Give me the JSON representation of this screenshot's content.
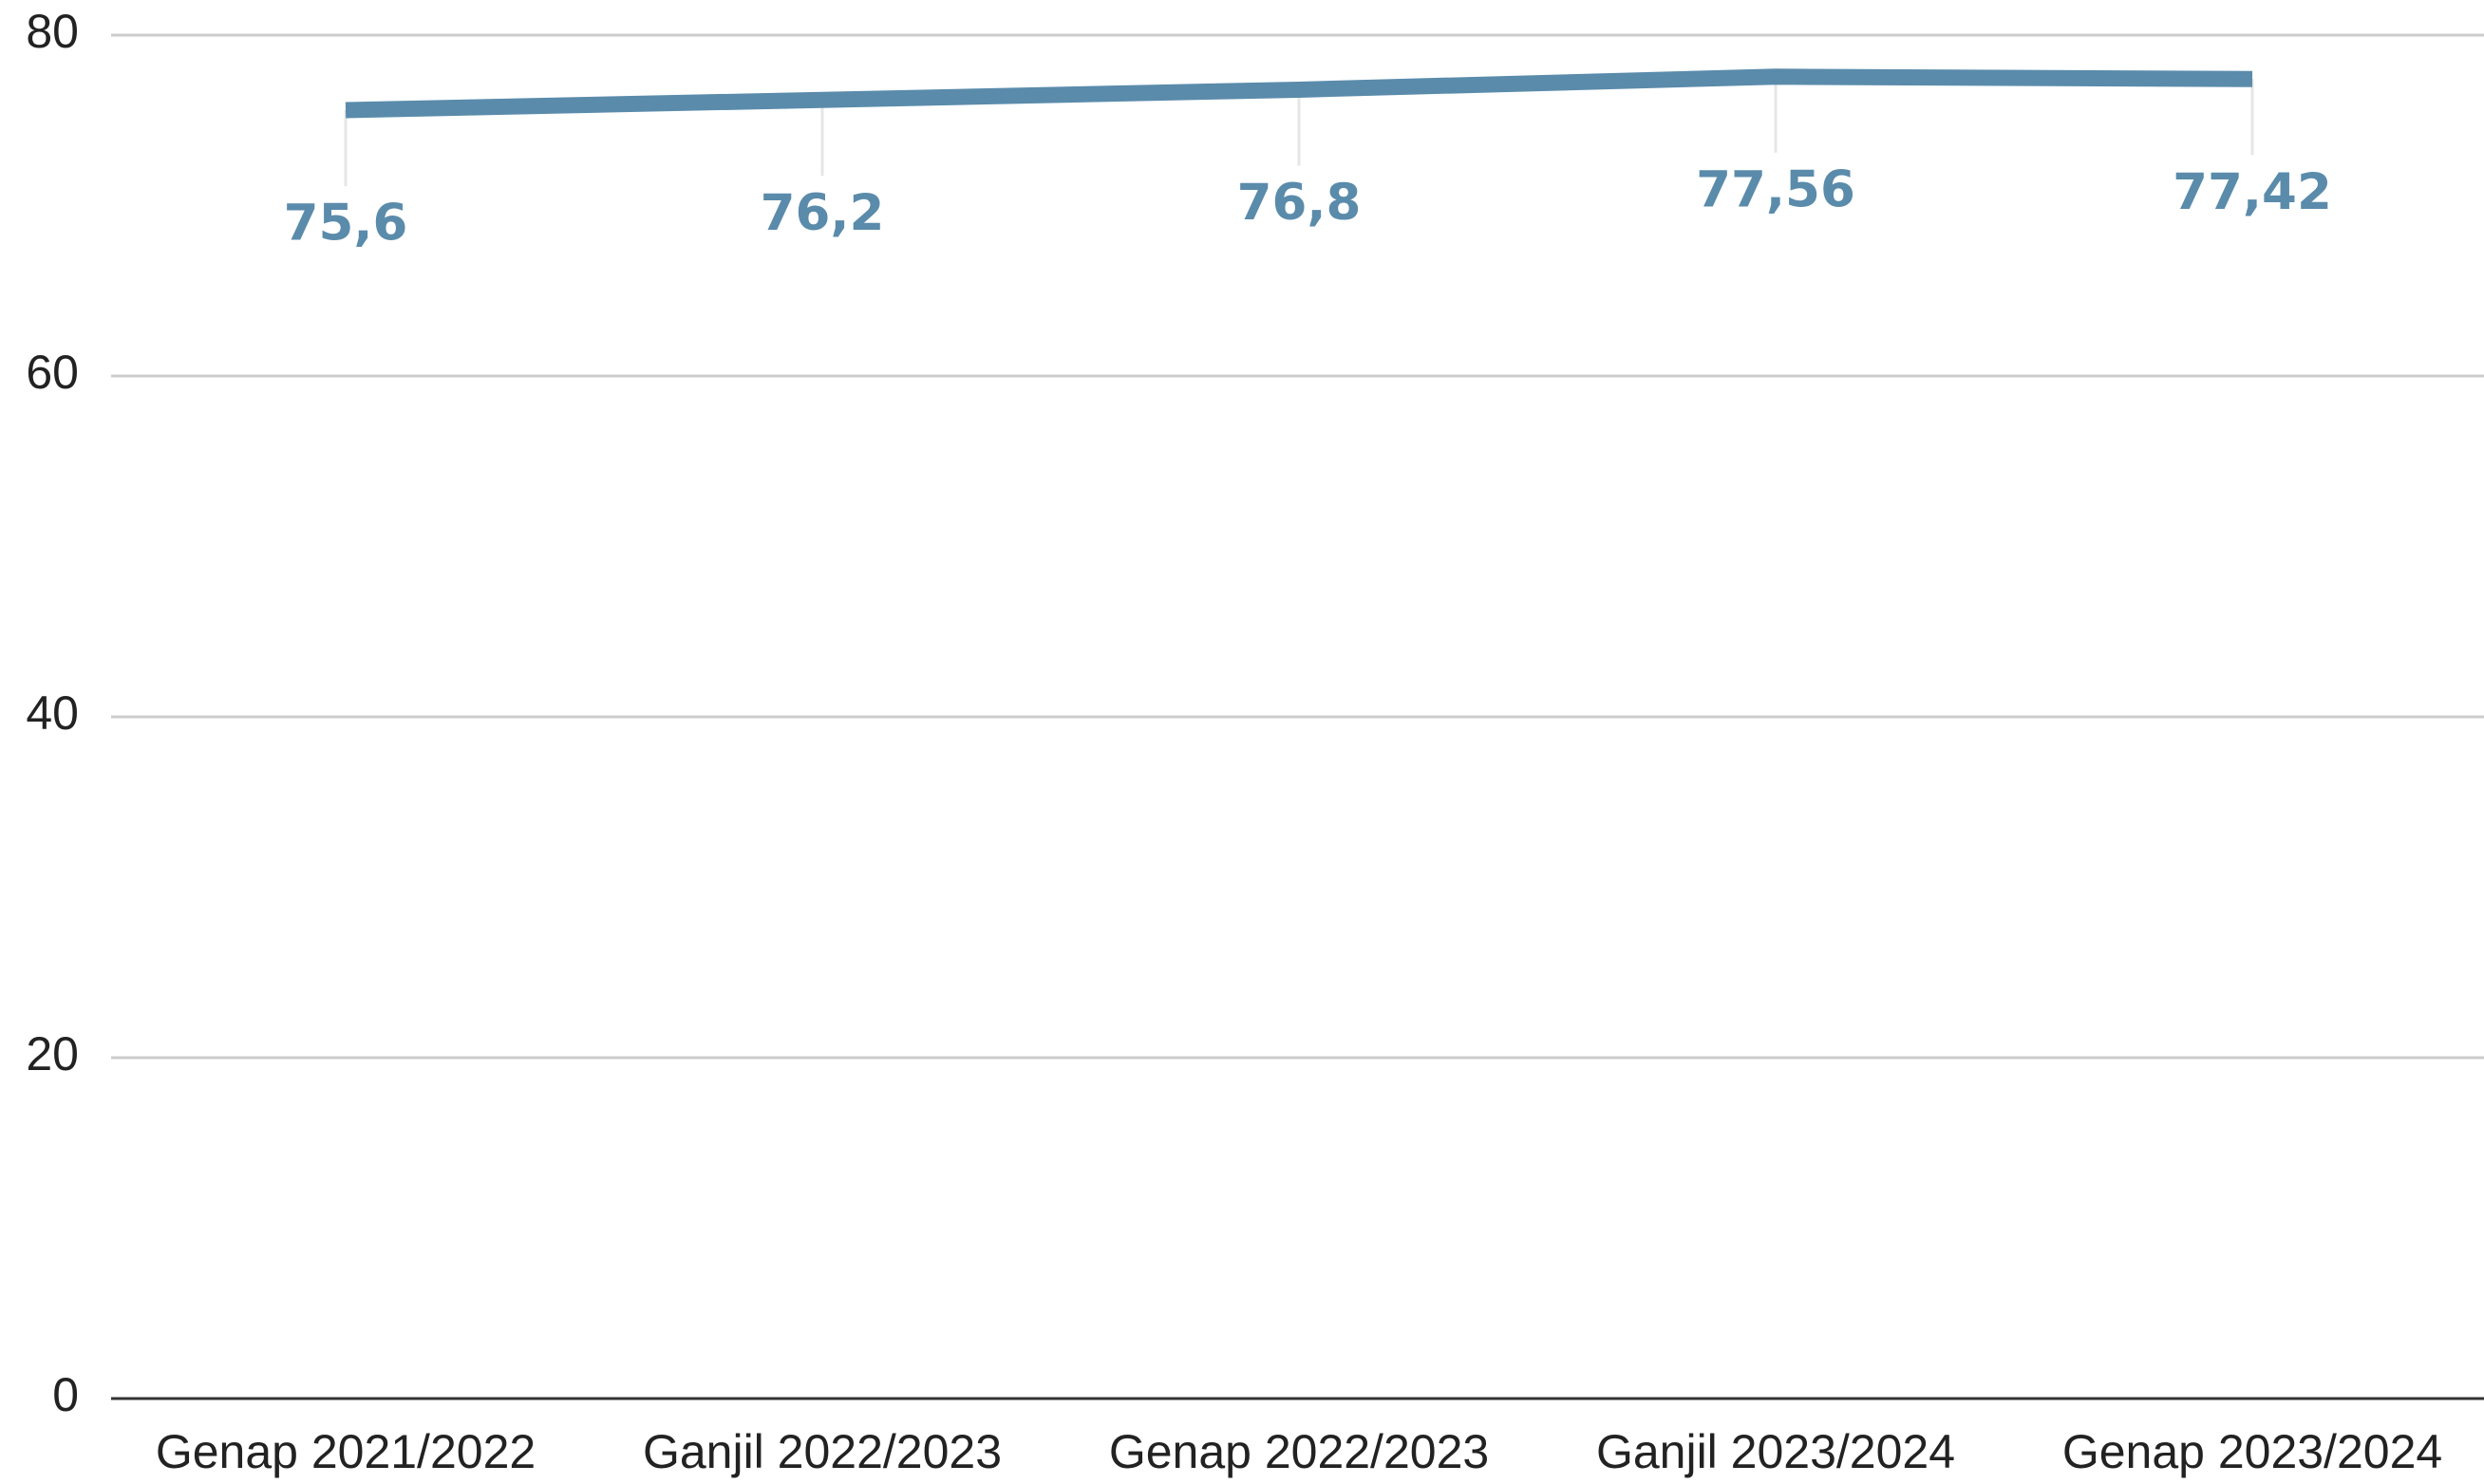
{
  "chart_data": {
    "type": "line",
    "categories": [
      "Genap 2021/2022",
      "Ganjil 2022/2023",
      "Genap 2022/2023",
      "Ganjil 2023/2024",
      "Genap 2023/2024"
    ],
    "values": [
      75.6,
      76.2,
      76.8,
      77.56,
      77.42
    ],
    "value_labels": [
      "75,6",
      "76,2",
      "76,8",
      "77,56",
      "77,42"
    ],
    "color": "#5a8bab",
    "ylim": [
      0,
      80
    ],
    "yticks": [
      0,
      20,
      40,
      60,
      80
    ],
    "grid": true
  }
}
